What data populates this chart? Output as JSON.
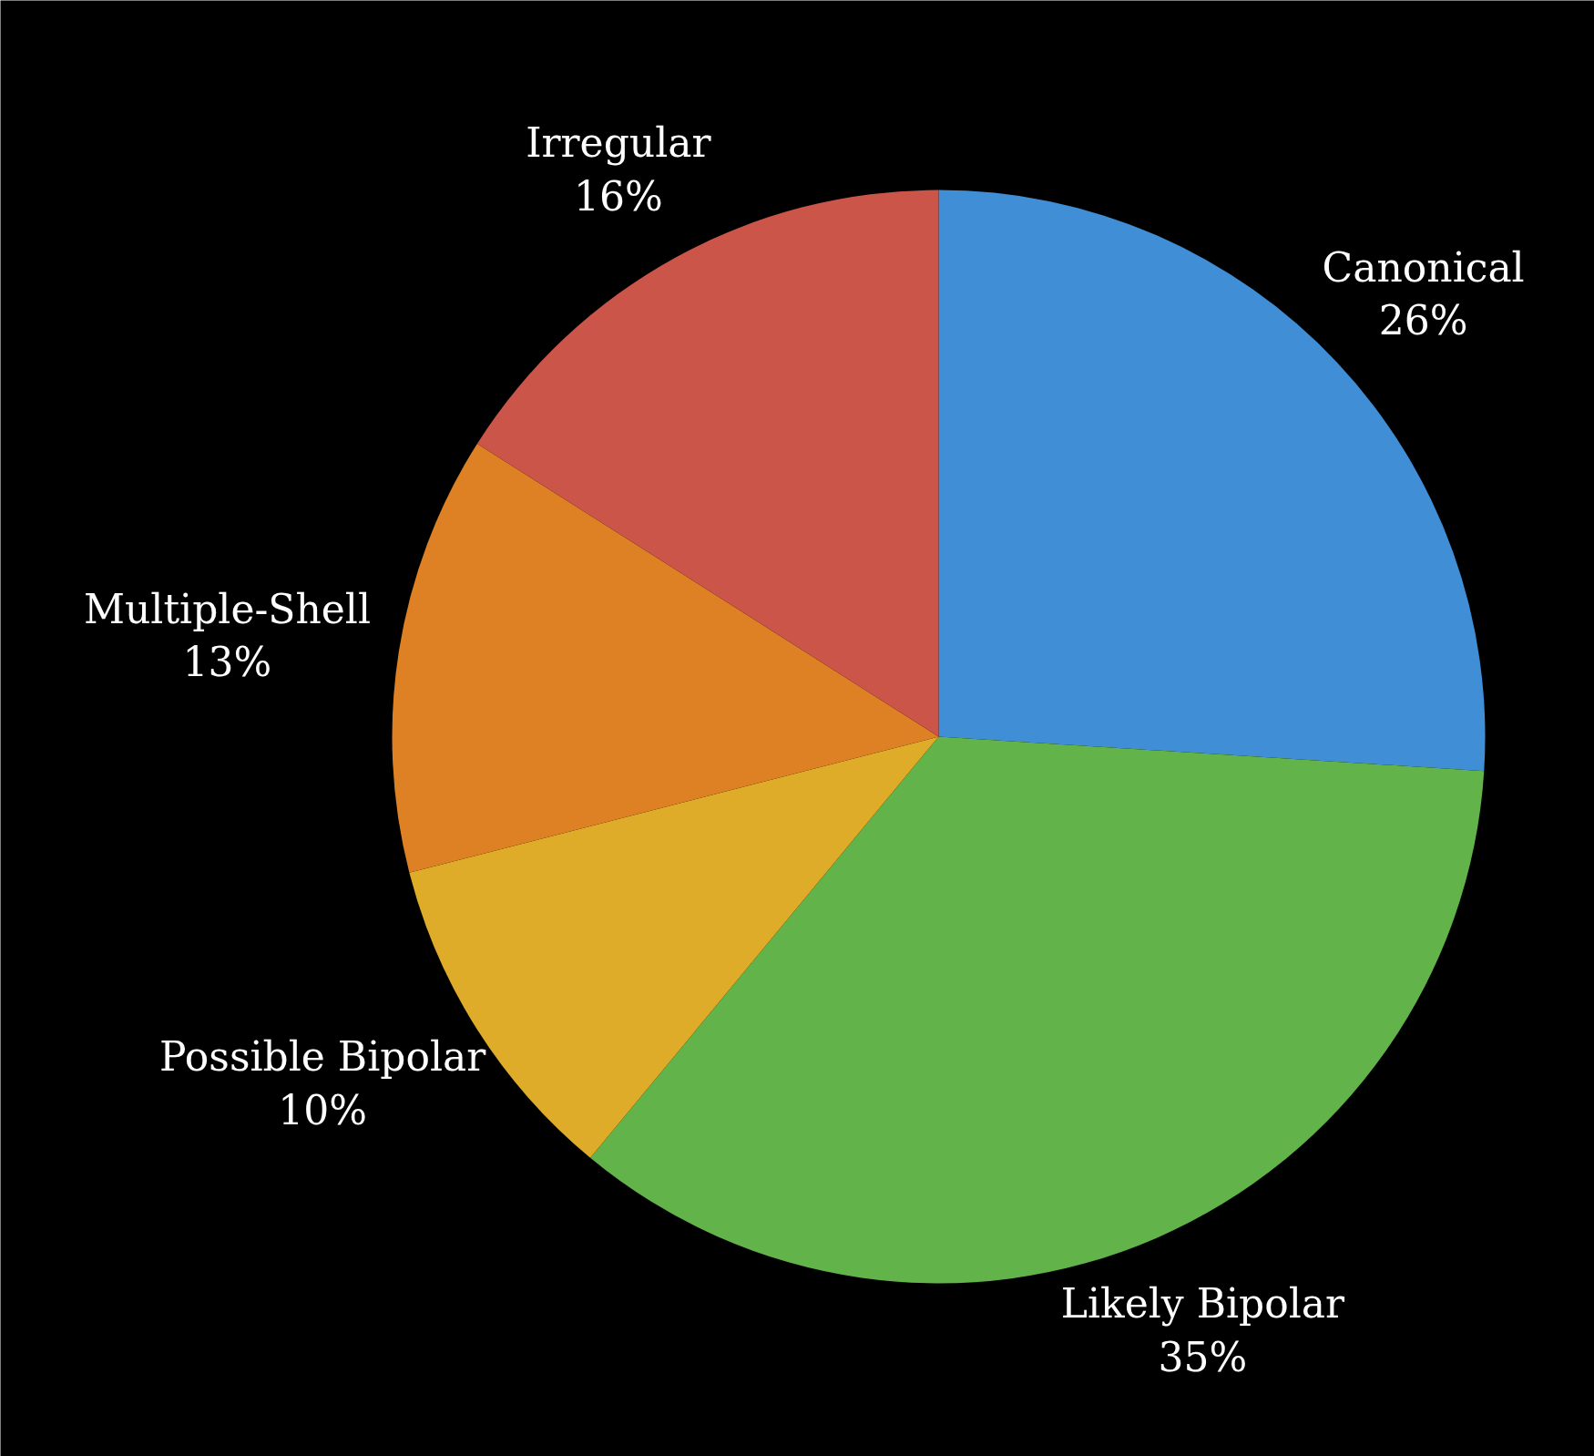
{
  "chart_data": {
    "type": "pie",
    "categories": [
      "Canonical",
      "Likely Bipolar",
      "Possible Bipolar",
      "Multiple-Shell",
      "Irregular"
    ],
    "values": [
      26,
      35,
      10,
      13,
      16
    ],
    "colors": [
      "#3f8ed6",
      "#61b34a",
      "#deac28",
      "#de8125",
      "#cc5549"
    ],
    "value_labels": [
      "26%",
      "35%",
      "10%",
      "13%",
      "16%"
    ]
  }
}
